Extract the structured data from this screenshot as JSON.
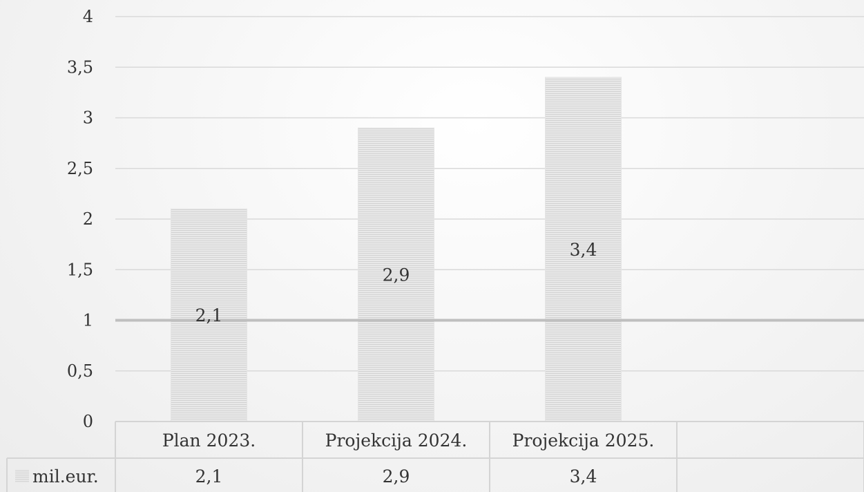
{
  "chart_data": {
    "type": "bar",
    "categories": [
      "Plan 2023.",
      "Projekcija 2024.",
      "Projekcija 2025."
    ],
    "series": [
      {
        "name": "mil.eur.",
        "values": [
          2.1,
          2.9,
          3.4
        ],
        "value_labels": [
          "2,1",
          "2,9",
          "3,4"
        ]
      }
    ],
    "reference_line": 1,
    "ylim": [
      0,
      4
    ],
    "yticks": [
      0,
      0.5,
      1,
      1.5,
      2,
      2.5,
      3,
      3.5,
      4
    ],
    "ytick_labels": [
      "0",
      "0,5",
      "1",
      "1,5",
      "2",
      "2,5",
      "3",
      "3,5",
      "4"
    ],
    "grid": true,
    "legend": "data-table-left",
    "data_table": true,
    "colors": {
      "bar": "#dadada",
      "grid": "#d9d9d9",
      "reference": "#bfbfbf",
      "text": "#333333"
    }
  }
}
